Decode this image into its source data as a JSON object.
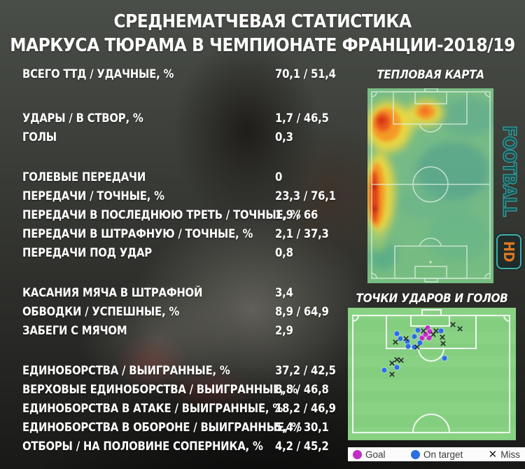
{
  "title": {
    "line1": "СРЕДНЕМАТЧЕВАЯ СТАТИСТИКА",
    "line2": "МАРКУСА ТЮРАМА В ЧЕМПИОНАТЕ ФРАНЦИИ-2018/19"
  },
  "stats": {
    "groups": [
      {
        "rows": [
          {
            "label": "ВСЕГО ТТД / УДАЧНЫЕ, %",
            "value": "70,1 / 51,4"
          }
        ]
      },
      {
        "rows": [
          {
            "label": "УДАРЫ / В СТВОР, %",
            "value": "1,7 / 46,5"
          },
          {
            "label": "ГОЛЫ",
            "value": "0,3"
          }
        ]
      },
      {
        "rows": [
          {
            "label": "ГОЛЕВЫЕ ПЕРЕДАЧИ",
            "value": "0"
          },
          {
            "label": "ПЕРЕДАЧИ / ТОЧНЫЕ, %",
            "value": "23,3 / 76,1"
          },
          {
            "label": "ПЕРЕДАЧИ В ПОСЛЕДНЮЮ ТРЕТЬ / ТОЧНЫЕ, %",
            "value": "1,9 / 66"
          },
          {
            "label": "ПЕРЕДАЧИ В ШТРАФНУЮ / ТОЧНЫЕ, %",
            "value": "2,1 / 37,3"
          },
          {
            "label": "ПЕРЕДАЧИ ПОД УДАР",
            "value": "0,8"
          }
        ]
      },
      {
        "rows": [
          {
            "label": "КАСАНИЯ МЯЧА В ШТРАФНОЙ",
            "value": "3,4"
          },
          {
            "label": "ОБВОДКИ / УСПЕШНЫЕ, %",
            "value": "8,9 / 64,9"
          },
          {
            "label": "ЗАБЕГИ С МЯЧОМ",
            "value": "2,9"
          }
        ]
      },
      {
        "rows": [
          {
            "label": "ЕДИНОБОРСТВА / ВЫИГРАННЫЕ, %",
            "value": "37,2 / 42,5"
          },
          {
            "label": "ВЕРХОВЫЕ ЕДИНОБОРСТВА / ВЫИГРАННЫЕ, %",
            "value": "8,8 / 46,8"
          },
          {
            "label": "ЕДИНОБОРСТВА В АТАКЕ / ВЫИГРАННЫЕ, %",
            "value": "18,2 / 46,9"
          },
          {
            "label": "ЕДИНОБОРСТВА В ОБОРОНЕ / ВЫИГРАННЫЕ, %",
            "value": "5,4 / 30,1"
          },
          {
            "label": "ОТБОРЫ / НА ПОЛОВИНЕ СОПЕРНИКА, %",
            "value": "4,2 / 45,2"
          }
        ]
      }
    ]
  },
  "heatmap": {
    "heading": "ТЕПЛОВАЯ КАРТА"
  },
  "shotmap": {
    "heading": "ТОЧКИ УДАРОВ И ГОЛОВ"
  },
  "legend": {
    "items": [
      {
        "label": "Goal",
        "marker": "circle",
        "color": "#c02ec4"
      },
      {
        "label": "On target",
        "marker": "circle",
        "color": "#2b6fe4"
      },
      {
        "label": "Miss",
        "marker": "x",
        "color": "#26302a"
      }
    ]
  },
  "watermark": {
    "text": "FOOTBALL",
    "badge": "HD"
  },
  "colors": {
    "goal": "#c02ec4",
    "on_target": "#2b6fe4",
    "miss": "#26302a",
    "pitch_green": "#84ce80",
    "heat_scale": [
      "#5aa98c",
      "#8abf7a",
      "#f5d83c",
      "#f59322",
      "#d8351a"
    ]
  },
  "chart_data": [
    {
      "type": "heatmap",
      "title": "ТЕПЛОВАЯ КАРТА",
      "orientation": "vertical pitch, attacking goal at top",
      "scale": [
        "teal-green = low activity",
        "yellow = medium",
        "orange = high",
        "red = very high"
      ],
      "hot_zones": [
        {
          "zone": "left flank, attacking third",
          "x_pct": 14,
          "y_pct": 19,
          "intensity": "very high"
        },
        {
          "zone": "left touchline, middle third",
          "x_pct": 8,
          "y_pct": 55,
          "intensity": "very high"
        },
        {
          "zone": "edge of six-yard box, centre",
          "x_pct": 46,
          "y_pct": 12,
          "intensity": "high"
        }
      ]
    },
    {
      "type": "scatter",
      "title": "ТОЧКИ УДАРОВ И ГОЛОВ",
      "orientation": "attacking half, goal at top",
      "units": "canvas px on 240×189 pitch drawing",
      "legend_position": "bottom",
      "series": [
        {
          "name": "Goal",
          "marker": "circle",
          "color": "#c02ec4",
          "points": [
            [
              114,
              29
            ],
            [
              117,
              34
            ],
            [
              106,
              43
            ],
            [
              116,
              43
            ],
            [
              111,
              38
            ]
          ]
        },
        {
          "name": "On target",
          "marker": "circle",
          "color": "#2b6fe4",
          "points": [
            [
              70,
              37
            ],
            [
              75,
              44
            ],
            [
              85,
              48
            ],
            [
              95,
              41
            ],
            [
              100,
              32
            ],
            [
              95,
              56
            ],
            [
              86,
              55
            ],
            [
              103,
              50
            ],
            [
              133,
              33
            ],
            [
              138,
              72
            ],
            [
              52,
              89
            ],
            [
              70,
              85
            ]
          ]
        },
        {
          "name": "Miss",
          "marker": "x",
          "color": "#26302a",
          "points": [
            [
              108,
              33
            ],
            [
              126,
              33
            ],
            [
              122,
              38
            ],
            [
              135,
              42
            ],
            [
              136,
              51
            ],
            [
              99,
              56
            ],
            [
              83,
              44
            ],
            [
              68,
              49
            ],
            [
              150,
              24
            ],
            [
              160,
              30
            ],
            [
              70,
              74
            ],
            [
              76,
              75
            ],
            [
              63,
              79
            ],
            [
              63,
              95
            ]
          ]
        }
      ]
    }
  ]
}
